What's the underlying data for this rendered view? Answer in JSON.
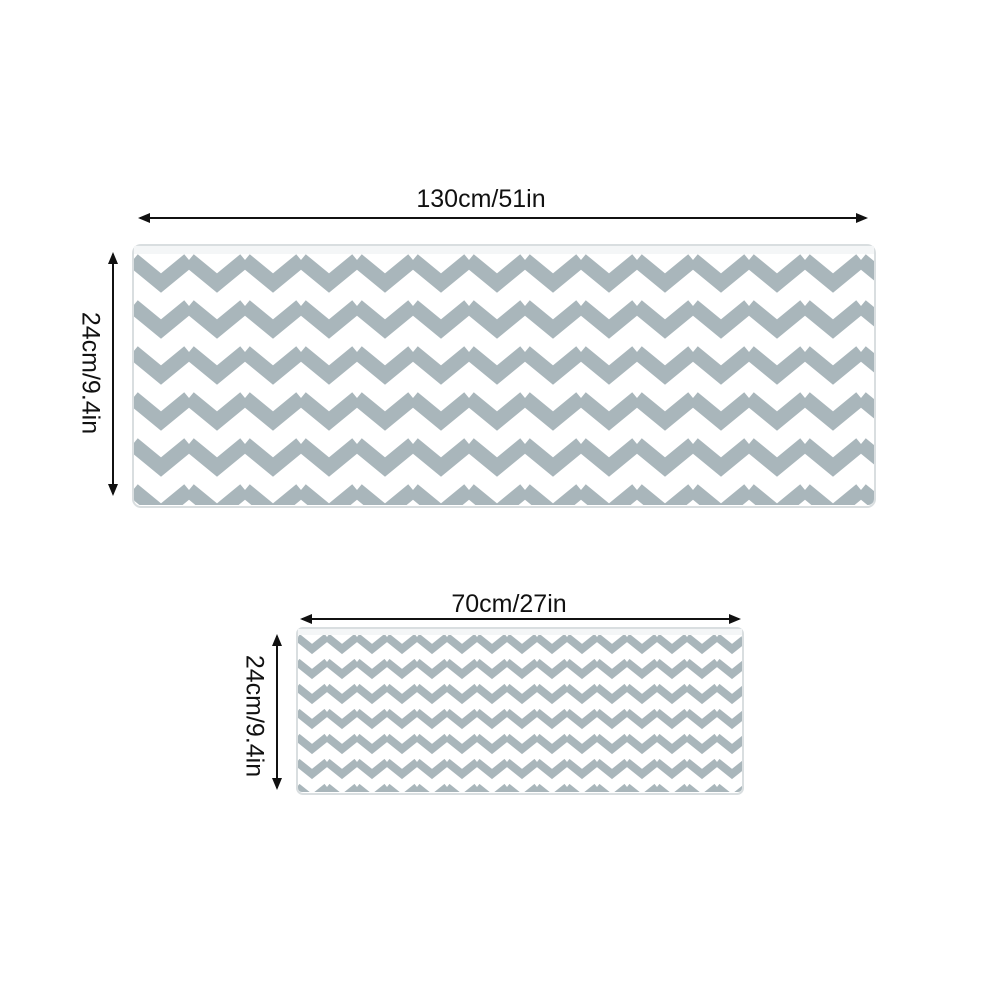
{
  "product_view": {
    "large_mat": {
      "width_label": "130cm/51in",
      "height_label": "24cm/9.4in"
    },
    "small_mat": {
      "width_label": "70cm/27in",
      "height_label": "24cm/9.4in"
    }
  },
  "colors": {
    "chevron_stripe": "#a9b6bb",
    "chevron_background": "#ffffff",
    "mat_edge": "#d9dee0",
    "arrow": "#111111",
    "text": "#111111"
  }
}
